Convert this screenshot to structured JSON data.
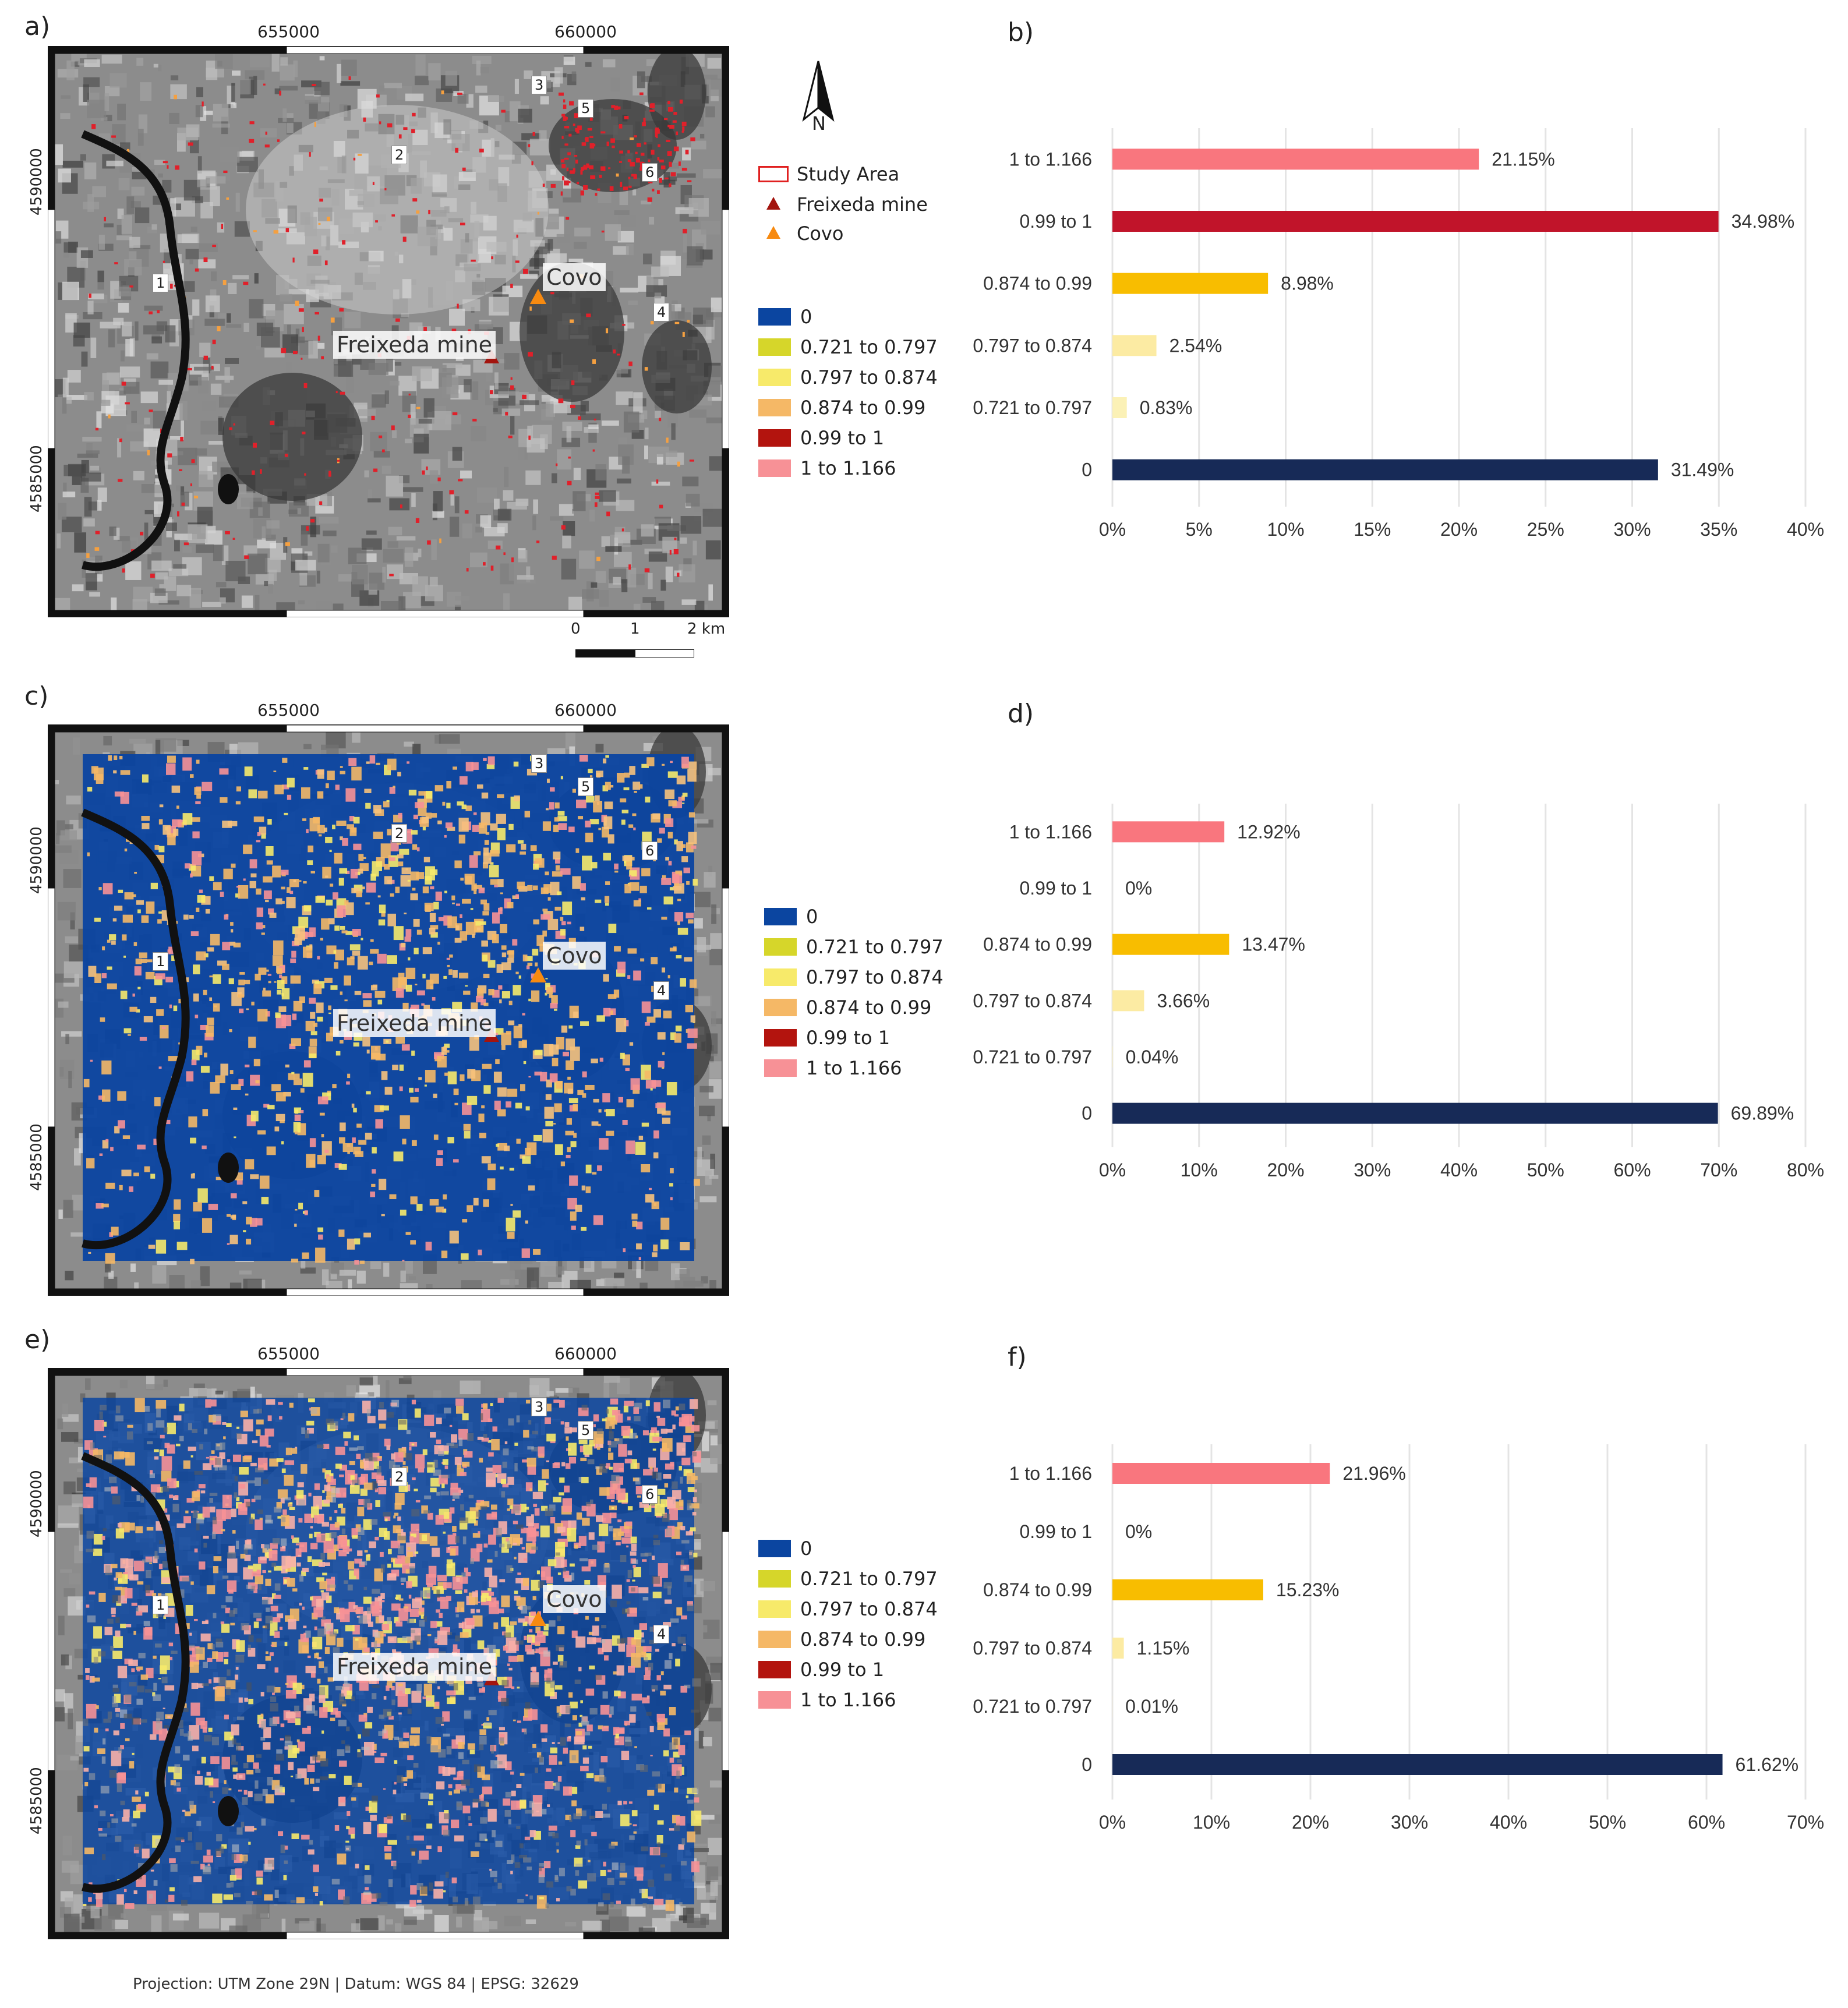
{
  "panels": [
    {
      "id": "a",
      "label": "a)",
      "kind": "map",
      "mode": "hydro"
    },
    {
      "id": "b",
      "label": "b)",
      "kind": "chart"
    },
    {
      "id": "c",
      "label": "c)",
      "kind": "map",
      "mode": "lr"
    },
    {
      "id": "d",
      "label": "d)",
      "kind": "chart"
    },
    {
      "id": "e",
      "label": "e)",
      "kind": "map",
      "mode": "ccr"
    },
    {
      "id": "f",
      "label": "f)",
      "kind": "chart"
    }
  ],
  "map": {
    "x_ticks": [
      "655000",
      "660000"
    ],
    "y_ticks": [
      "4590000",
      "4585000"
    ],
    "places": {
      "covo": "Covo",
      "freixeda": "Freixeda mine"
    },
    "sites": [
      "1",
      "2",
      "3",
      "4",
      "5",
      "6"
    ]
  },
  "north_arrow": {
    "label": "N"
  },
  "top_legend": {
    "study_area": "Study Area",
    "freixeda": "Freixeda mine",
    "covo": "Covo"
  },
  "class_legend": {
    "items": [
      {
        "label": "0",
        "color": "#0b45a0"
      },
      {
        "label": "0.721 to 0.797",
        "color": "#d6d62a"
      },
      {
        "label": "0.797 to 0.874",
        "color": "#f7ea6a"
      },
      {
        "label": "0.874 to 0.99",
        "color": "#f5b866"
      },
      {
        "label": "0.99 to 1",
        "color": "#b3140e"
      },
      {
        "label": "1 to 1.166",
        "color": "#f79196"
      }
    ]
  },
  "scalebar": {
    "labels": [
      "0",
      "1",
      "2 km"
    ]
  },
  "footer": "Projection: UTM Zone 29N | Datum: WGS 84 | EPSG: 32629",
  "chart_data": [
    {
      "type": "bar",
      "orientation": "horizontal",
      "panel": "b",
      "categories": [
        "1 to 1.166",
        "0.99 to 1",
        "0.874 to 0.99",
        "0.797 to 0.874",
        "0.721 to 0.797",
        "0"
      ],
      "values": [
        21.15,
        34.98,
        8.98,
        2.54,
        0.83,
        31.49
      ],
      "value_labels": [
        "21.15%",
        "34.98%",
        "8.98%",
        "2.54%",
        "0.83%",
        "31.49%"
      ],
      "colors": [
        "#f9767e",
        "#c1142a",
        "#f8bd00",
        "#fceba3",
        "#fbf1b6",
        "#172a57"
      ],
      "xlim": [
        0,
        40
      ],
      "xticks": [
        "0%",
        "5%",
        "10%",
        "15%",
        "20%",
        "25%",
        "30%",
        "35%",
        "40%"
      ],
      "grid": true
    },
    {
      "type": "bar",
      "orientation": "horizontal",
      "panel": "d",
      "categories": [
        "1 to 1.166",
        "0.99 to 1",
        "0.874 to 0.99",
        "0.797 to 0.874",
        "0.721 to 0.797",
        "0"
      ],
      "values": [
        12.92,
        0,
        13.47,
        3.66,
        0.04,
        69.89
      ],
      "value_labels": [
        "12.92%",
        "0%",
        "13.47%",
        "3.66%",
        "0.04%",
        "69.89%"
      ],
      "colors": [
        "#f9767e",
        "#c1142a",
        "#f8bd00",
        "#fceba3",
        "#fbf1b6",
        "#172a57"
      ],
      "xlim": [
        0,
        80
      ],
      "xticks": [
        "0%",
        "10%",
        "20%",
        "30%",
        "40%",
        "50%",
        "60%",
        "70%",
        "80%"
      ],
      "grid": true
    },
    {
      "type": "bar",
      "orientation": "horizontal",
      "panel": "f",
      "categories": [
        "1 to 1.166",
        "0.99 to 1",
        "0.874 to 0.99",
        "0.797 to 0.874",
        "0.721 to 0.797",
        "0"
      ],
      "values": [
        21.96,
        0,
        15.23,
        1.15,
        0.01,
        61.62
      ],
      "value_labels": [
        "21.96%",
        "0%",
        "15.23%",
        "1.15%",
        "0.01%",
        "61.62%"
      ],
      "colors": [
        "#f9767e",
        "#c1142a",
        "#f8bd00",
        "#fceba3",
        "#fbf1b6",
        "#172a57"
      ],
      "xlim": [
        0,
        70
      ],
      "xticks": [
        "0%",
        "10%",
        "20%",
        "30%",
        "40%",
        "50%",
        "60%",
        "70%"
      ],
      "grid": true
    }
  ]
}
